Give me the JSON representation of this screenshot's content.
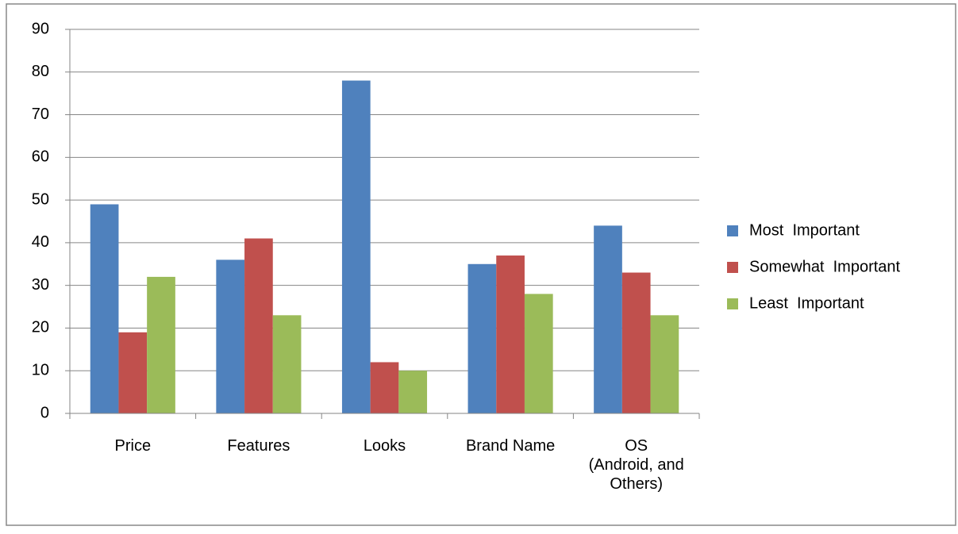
{
  "chart_data": {
    "type": "bar",
    "categories": [
      "Price",
      "Features",
      "Looks",
      "Brand Name",
      "OS\n(Android, and\nOthers)"
    ],
    "series": [
      {
        "name": "Most  Important",
        "color": "#4f81bd",
        "values": [
          49,
          36,
          78,
          35,
          44
        ]
      },
      {
        "name": "Somewhat  Important",
        "color": "#c0504d",
        "values": [
          19,
          41,
          12,
          37,
          33
        ]
      },
      {
        "name": "Least  Important",
        "color": "#9bbb59",
        "values": [
          32,
          23,
          10,
          28,
          23
        ]
      }
    ],
    "ylim": [
      0,
      90
    ],
    "yticks": [
      0,
      10,
      20,
      30,
      40,
      50,
      60,
      70,
      80,
      90
    ],
    "grid": true,
    "legend": "right"
  }
}
